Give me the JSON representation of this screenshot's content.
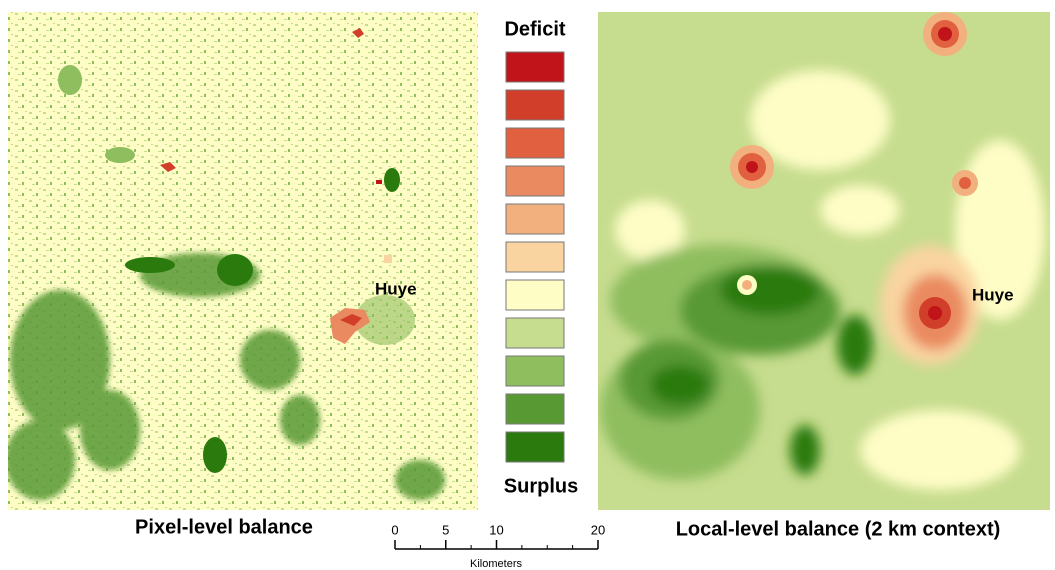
{
  "left_panel": {
    "title": "Pixel-level balance",
    "place_label": "Huye"
  },
  "right_panel": {
    "title": "Local-level balance (2 km context)",
    "place_label": "Huye"
  },
  "legend": {
    "top_label": "Deficit",
    "bottom_label": "Surplus",
    "colors": [
      "#c0131a",
      "#d13f2a",
      "#e0603f",
      "#ea8a60",
      "#f2b07e",
      "#f9d4a0",
      "#fefdc6",
      "#c6dc8e",
      "#8fbe5e",
      "#589934",
      "#2b7a0e"
    ]
  },
  "scale_bar": {
    "ticks": [
      0,
      5,
      10,
      20
    ],
    "unit": "Kilometers"
  }
}
